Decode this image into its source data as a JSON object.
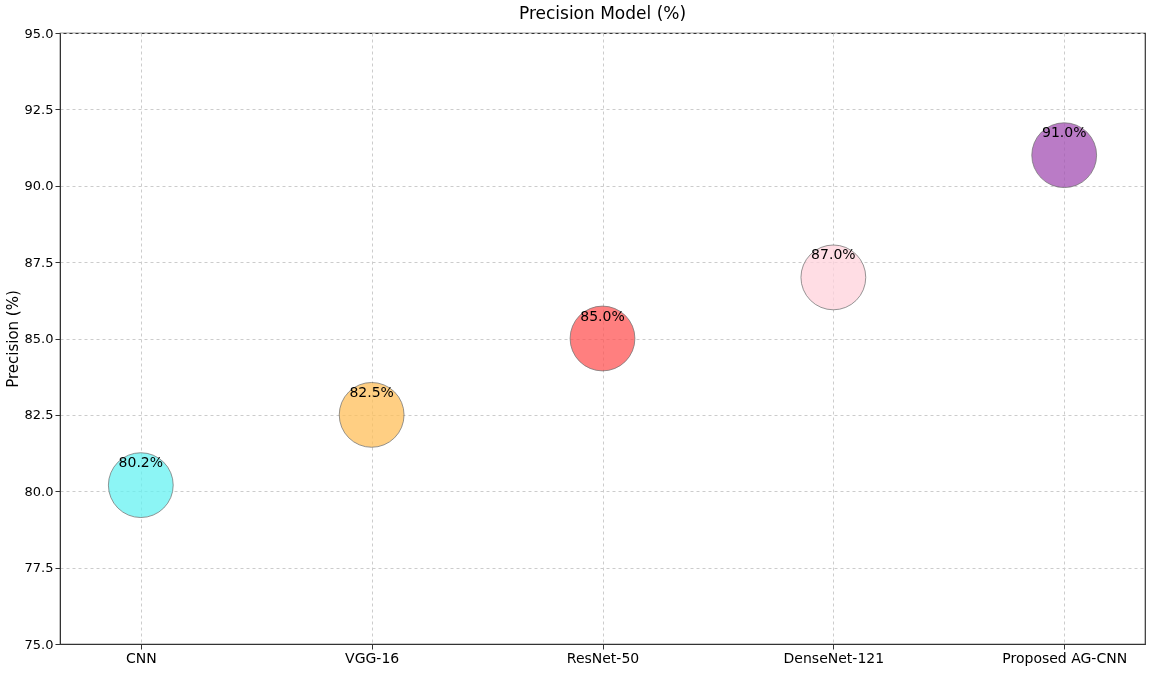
{
  "chart_data": {
    "type": "scatter",
    "title": "Precision Model  (%)",
    "ylabel": "Precision (%)",
    "categories": [
      "CNN",
      "VGG-16",
      "ResNet-50",
      "DenseNet-121",
      "Proposed AG-CNN"
    ],
    "values": [
      80.2,
      82.5,
      85.0,
      87.0,
      91.0
    ],
    "colors": [
      "#66f2f2",
      "#ffc05a",
      "#ff5555",
      "#ffd2dc",
      "#a350b3"
    ],
    "value_labels": [
      "80.2%",
      "82.5%",
      "85.0%",
      "87.0%",
      "91.0%"
    ],
    "ylim": [
      75,
      95
    ],
    "yticks": [
      {
        "value": 75,
        "label": "75.0"
      },
      {
        "value": 77.5,
        "label": "77.5"
      },
      {
        "value": 80,
        "label": "80.0"
      },
      {
        "value": 82.5,
        "label": "82.5"
      },
      {
        "value": 85,
        "label": "85.0"
      },
      {
        "value": 87.5,
        "label": "87.5"
      },
      {
        "value": 90,
        "label": "90.0"
      },
      {
        "value": 92.5,
        "label": "92.5"
      },
      {
        "value": 95,
        "label": "95.0"
      }
    ],
    "grid": true,
    "marker": "circle"
  }
}
